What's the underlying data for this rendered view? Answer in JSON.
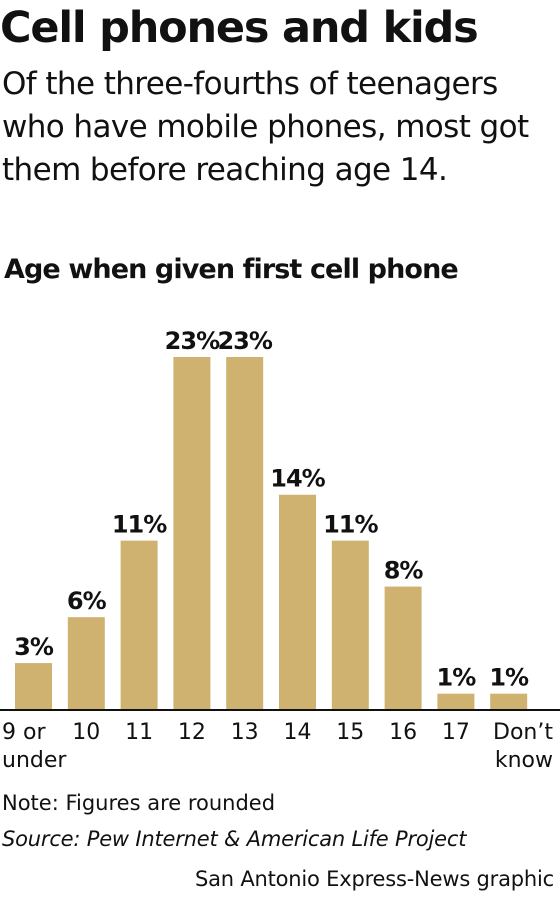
{
  "header": {
    "title": "Cell phones and kids",
    "subtitle": "Of the three-fourths of teenagers who have mobile phones, most got them before reaching age 14."
  },
  "chart_data": {
    "type": "bar",
    "title": "Age when given first cell phone",
    "categories": [
      "9 or under",
      "10",
      "11",
      "12",
      "13",
      "14",
      "15",
      "16",
      "17",
      "Don’t know"
    ],
    "values": [
      3,
      6,
      11,
      23,
      23,
      14,
      11,
      8,
      1,
      1
    ],
    "value_labels": [
      "3%",
      "6%",
      "11%",
      "23%",
      "23%",
      "14%",
      "11%",
      "8%",
      "1%",
      "1%"
    ],
    "xlabel": "",
    "ylabel": "",
    "ylim": [
      0,
      23
    ],
    "grid": false,
    "legend": "none",
    "bar_color": "#cfb270"
  },
  "footer": {
    "note": "Note: Figures are rounded",
    "source": "Source: Pew Internet & American Life Project",
    "credit": "San Antonio Express-News graphic"
  }
}
